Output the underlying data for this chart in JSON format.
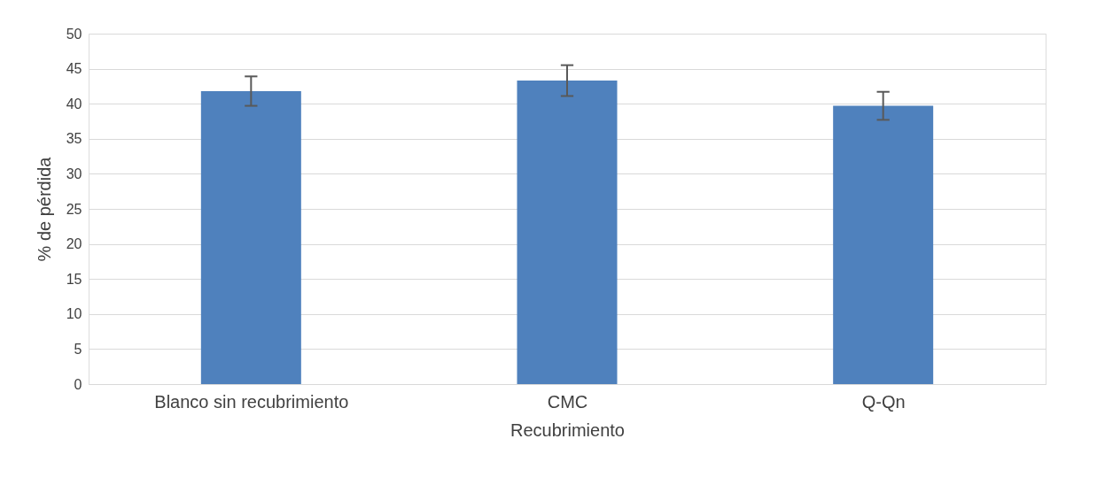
{
  "chart_data": {
    "type": "bar",
    "xlabel": "Recubrimiento",
    "ylabel": "% de pérdida",
    "categories": [
      "Blanco sin recubrimiento",
      "CMC",
      "Q-Qn"
    ],
    "values": [
      41.8,
      43.3,
      39.7
    ],
    "errors": [
      2.1,
      2.2,
      2.0
    ],
    "color": "#4f81bd",
    "ylim": [
      0,
      50
    ],
    "yticks": [
      0,
      5,
      10,
      15,
      20,
      25,
      30,
      35,
      40,
      45,
      50
    ],
    "grid": "y"
  }
}
